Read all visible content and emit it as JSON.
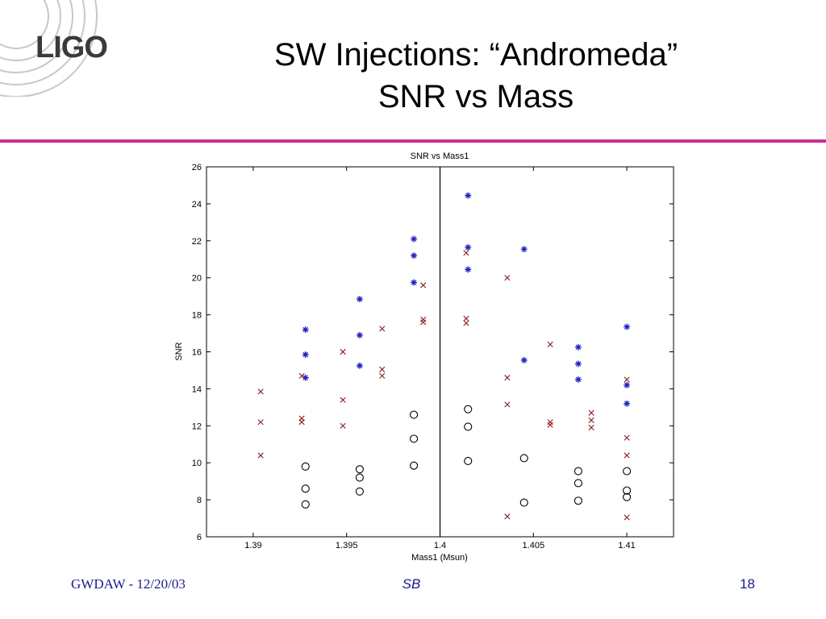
{
  "slide": {
    "logo_text": "LIGO",
    "title_line1": "SW Injections: “Andromeda”",
    "title_line2": "SNR vs Mass",
    "footer_left": "GWDAW - 12/20/03",
    "footer_center": "SB",
    "footer_right": "18"
  },
  "colors": {
    "accent_line": "#cc2d8f",
    "star_series": "#1f1fbf",
    "x_series": "#8b1a1a",
    "circle_series": "#000000",
    "footer_text": "#1a1a8c"
  },
  "chart_data": {
    "type": "scatter",
    "title": "SNR vs Mass1",
    "xlabel": "Mass1 (Msun)",
    "ylabel": "SNR",
    "xlim": [
      1.3875,
      1.4125
    ],
    "ylim": [
      6,
      26
    ],
    "xticks": [
      1.39,
      1.395,
      1.4,
      1.405,
      1.41
    ],
    "xtick_labels": [
      "1.39",
      "1.395",
      "1.4",
      "1.405",
      "1.41"
    ],
    "yticks": [
      6,
      8,
      10,
      12,
      14,
      16,
      18,
      20,
      22,
      24,
      26
    ],
    "ytick_labels": [
      "6",
      "8",
      "10",
      "12",
      "14",
      "16",
      "18",
      "20",
      "22",
      "24",
      "26"
    ],
    "grid": false,
    "vline_x": 1.4,
    "series": [
      {
        "marker": "star",
        "color": "#1f1fbf",
        "points": [
          [
            1.3928,
            17.2
          ],
          [
            1.3928,
            15.85
          ],
          [
            1.3928,
            14.6
          ],
          [
            1.3957,
            18.85
          ],
          [
            1.3957,
            16.9
          ],
          [
            1.3957,
            15.25
          ],
          [
            1.3986,
            22.1
          ],
          [
            1.3986,
            21.2
          ],
          [
            1.3986,
            19.75
          ],
          [
            1.4015,
            24.45
          ],
          [
            1.4015,
            21.65
          ],
          [
            1.4015,
            20.45
          ],
          [
            1.4045,
            21.55
          ],
          [
            1.4045,
            15.55
          ],
          [
            1.4074,
            16.25
          ],
          [
            1.4074,
            15.35
          ],
          [
            1.4074,
            14.5
          ],
          [
            1.41,
            17.35
          ],
          [
            1.41,
            14.2
          ],
          [
            1.41,
            13.2
          ]
        ]
      },
      {
        "marker": "x",
        "color": "#8b1a1a",
        "points": [
          [
            1.3904,
            13.85
          ],
          [
            1.3904,
            12.2
          ],
          [
            1.3904,
            10.4
          ],
          [
            1.3926,
            14.7
          ],
          [
            1.3926,
            12.4
          ],
          [
            1.3926,
            12.2
          ],
          [
            1.3948,
            16.0
          ],
          [
            1.3948,
            13.4
          ],
          [
            1.3948,
            12.0
          ],
          [
            1.3969,
            17.25
          ],
          [
            1.3969,
            15.05
          ],
          [
            1.3969,
            14.7
          ],
          [
            1.3991,
            19.6
          ],
          [
            1.3991,
            17.75
          ],
          [
            1.3991,
            17.6
          ],
          [
            1.4014,
            21.35
          ],
          [
            1.4014,
            17.8
          ],
          [
            1.4014,
            17.55
          ],
          [
            1.4036,
            20.0
          ],
          [
            1.4036,
            14.6
          ],
          [
            1.4036,
            13.15
          ],
          [
            1.4036,
            7.1
          ],
          [
            1.4059,
            16.4
          ],
          [
            1.4059,
            12.2
          ],
          [
            1.4059,
            12.05
          ],
          [
            1.4081,
            12.7
          ],
          [
            1.4081,
            12.3
          ],
          [
            1.4081,
            11.9
          ],
          [
            1.41,
            14.5
          ],
          [
            1.41,
            11.35
          ],
          [
            1.41,
            10.4
          ],
          [
            1.41,
            7.05
          ]
        ]
      },
      {
        "marker": "circle",
        "color": "#000000",
        "points": [
          [
            1.3928,
            9.8
          ],
          [
            1.3928,
            8.6
          ],
          [
            1.3928,
            7.75
          ],
          [
            1.3957,
            9.65
          ],
          [
            1.3957,
            9.2
          ],
          [
            1.3957,
            8.45
          ],
          [
            1.3986,
            12.6
          ],
          [
            1.3986,
            11.3
          ],
          [
            1.3986,
            9.85
          ],
          [
            1.4015,
            12.9
          ],
          [
            1.4015,
            11.95
          ],
          [
            1.4015,
            10.1
          ],
          [
            1.4045,
            10.25
          ],
          [
            1.4045,
            7.85
          ],
          [
            1.4074,
            9.55
          ],
          [
            1.4074,
            8.9
          ],
          [
            1.4074,
            7.95
          ],
          [
            1.41,
            9.55
          ],
          [
            1.41,
            8.5
          ],
          [
            1.41,
            8.15
          ]
        ]
      }
    ]
  }
}
